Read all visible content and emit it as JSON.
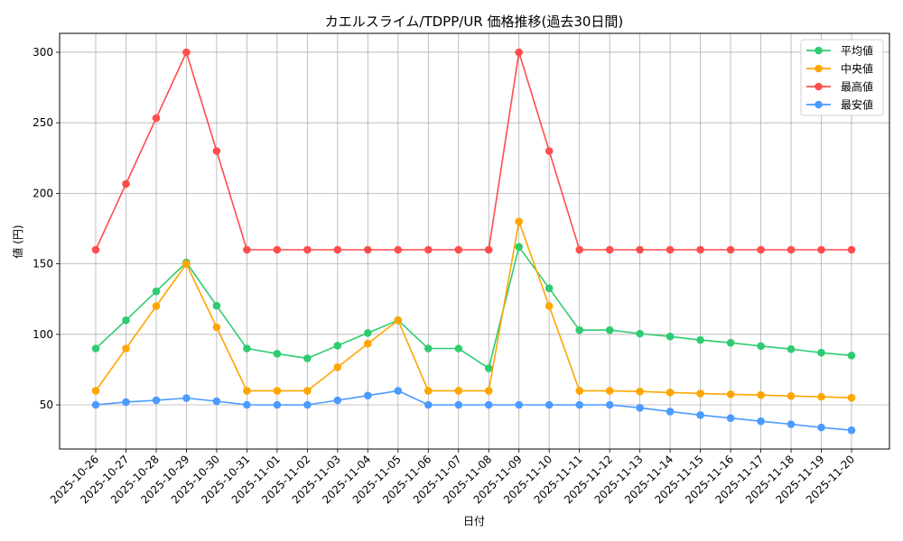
{
  "chart_data": {
    "type": "line",
    "title": "カエルスライム/TDPP/UR 価格推移(過去30日間)",
    "xlabel": "日付",
    "ylabel": "値 (円)",
    "ylim": [
      18.7,
      313.4
    ],
    "yticks": [
      50,
      100,
      150,
      200,
      250,
      300
    ],
    "grid": true,
    "legend_position": "upper right",
    "categories": [
      "2025-10-26",
      "2025-10-27",
      "2025-10-28",
      "2025-10-29",
      "2025-10-30",
      "2025-10-31",
      "2025-11-01",
      "2025-11-02",
      "2025-11-03",
      "2025-11-04",
      "2025-11-05",
      "2025-11-06",
      "2025-11-07",
      "2025-11-08",
      "2025-11-09",
      "2025-11-10",
      "2025-11-11",
      "2025-11-12",
      "2025-11-13",
      "2025-11-14",
      "2025-11-15",
      "2025-11-16",
      "2025-11-17",
      "2025-11-18",
      "2025-11-19",
      "2025-11-20"
    ],
    "series": [
      {
        "name": "平均値",
        "color": "#2ecc71",
        "values": [
          90,
          110,
          130.5,
          151,
          120.3,
          90,
          86.3,
          83,
          92,
          101,
          110,
          90,
          90,
          76,
          162,
          132.7,
          103,
          103,
          100.5,
          98.5,
          96,
          94,
          91.7,
          89.5,
          87,
          85
        ]
      },
      {
        "name": "中央値",
        "color": "#ffa500",
        "values": [
          60,
          90,
          120,
          150,
          105,
          60,
          60,
          60,
          76.7,
          93.4,
          110,
          60,
          60,
          60,
          180,
          120,
          60,
          60,
          59.5,
          58.8,
          58.1,
          57.5,
          56.9,
          56.3,
          55.7,
          55
        ]
      },
      {
        "name": "最高値",
        "color": "#ff4c4c",
        "values": [
          160,
          206.7,
          253.3,
          300,
          230,
          160,
          160,
          160,
          160,
          160,
          160,
          160,
          160,
          160,
          300,
          230,
          160,
          160,
          160,
          160,
          160,
          160,
          160,
          160,
          160,
          160
        ]
      },
      {
        "name": "最安値",
        "color": "#4c9aff",
        "values": [
          50,
          52,
          53.3,
          54.8,
          52.6,
          50,
          50,
          50,
          53.2,
          56.6,
          60,
          50,
          50,
          50,
          50,
          50,
          50,
          50,
          47.9,
          45.3,
          42.8,
          40.6,
          38.4,
          36.3,
          34,
          32
        ]
      }
    ]
  }
}
